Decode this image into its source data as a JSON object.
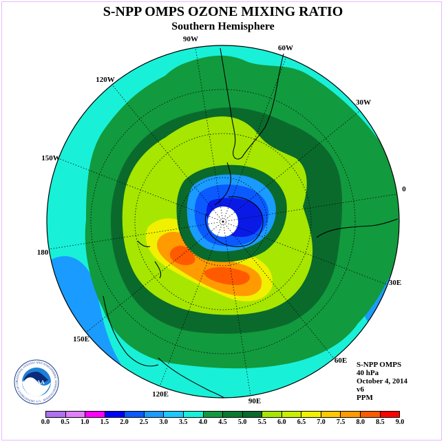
{
  "header": {
    "title": "S-NPP OMPS OZONE MIXING RATIO",
    "subtitle": "Southern Hemisphere"
  },
  "map": {
    "projection": "south polar stereographic",
    "longitude_labels": [
      "90W",
      "60W",
      "30W",
      "0",
      "30E",
      "60E",
      "90E",
      "120E",
      "150E",
      "180",
      "150W",
      "120W"
    ],
    "colors": {
      "ocean_background": "#19f0d8",
      "outer_ring": "#129a3e",
      "middle_ring": "#0a6a2c",
      "light_green": "#a6e600",
      "yellow": "#f0f000",
      "orange": "#ff9a00",
      "red_orange": "#ff5a00",
      "low_blue": "#1a9bff",
      "lowest_blue": "#0a1ae6",
      "missing_data": "#ffffff",
      "graticule": "#000000"
    }
  },
  "info": {
    "instrument": "S-NPP OMPS",
    "level": "40 hPa",
    "date": "October 4, 2014",
    "version": "v6",
    "units": "PPM"
  },
  "logo": {
    "text": "NOAA",
    "ring_text": "NATIONAL OCEANIC AND ATMOSPHERIC ADMINISTRATION · U.S. DEPARTMENT OF COMMERCE"
  },
  "colorbar": {
    "ticks": [
      "0.0",
      "0.5",
      "1.0",
      "1.5",
      "2.0",
      "2.5",
      "3.0",
      "3.5",
      "4.0",
      "4.5",
      "5.0",
      "5.5",
      "6.0",
      "6.5",
      "7.0",
      "7.5",
      "8.0",
      "8.5",
      "9.0"
    ],
    "colors": [
      "#b070f0",
      "#e080ff",
      "#ff00ff",
      "#0000ff",
      "#0a5aff",
      "#1a9bff",
      "#1ec8ff",
      "#19f0d8",
      "#129a3e",
      "#0a7a30",
      "#0a6a2c",
      "#a6e600",
      "#c8f000",
      "#f0f000",
      "#ffc800",
      "#ff9a00",
      "#ff5a00",
      "#ff0000",
      "#8b5a2b"
    ]
  }
}
